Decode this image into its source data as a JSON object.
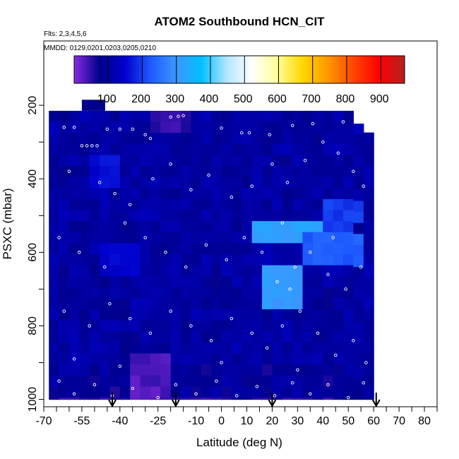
{
  "chart_data": {
    "type": "heatmap",
    "title": "ATOM2 Southbound HCN_CIT",
    "subtitle_flights": "Flts: 2,3,4,5,6",
    "subtitle_dates": "MMDD: 0129,0201,0203,0205,0210",
    "xlabel": "Latitude (deg N)",
    "ylabel": "PSXC (mbar)",
    "xlim": [
      -70,
      85
    ],
    "ylim": [
      1020,
      25
    ],
    "x_ticks": [
      -70,
      -55,
      -40,
      -25,
      -10,
      0,
      10,
      20,
      30,
      40,
      50,
      60,
      70,
      80
    ],
    "y_ticks": [
      200,
      400,
      600,
      800,
      1000
    ],
    "y_reversed": true,
    "grid": false,
    "colorbar": {
      "min": 0,
      "max": 970,
      "ticks": [
        100,
        200,
        300,
        400,
        500,
        600,
        700,
        800,
        900
      ],
      "colors": [
        "#8a2be2",
        "#00008b",
        "#0000cd",
        "#1e5aff",
        "#3c96ff",
        "#00bfff",
        "#b4e6ff",
        "#ffffff",
        "#ffff96",
        "#ffd700",
        "#ff9600",
        "#ff4500",
        "#ff0000",
        "#b22222"
      ],
      "placement": "top inside plot"
    },
    "arrows_latitude": [
      -43,
      -18,
      20,
      61
    ],
    "region": {
      "x_range": [
        -68,
        60
      ],
      "p_range": [
        215,
        1000
      ]
    },
    "anomalies": [
      {
        "x": [
          15,
          45
        ],
        "p": [
          520,
          570
        ],
        "value": 330
      },
      {
        "x": [
          18,
          32
        ],
        "p": [
          650,
          740
        ],
        "value": 320
      },
      {
        "x": [
          35,
          55
        ],
        "p": [
          565,
          620
        ],
        "value": 240
      },
      {
        "x": [
          40,
          55
        ],
        "p": [
          460,
          520
        ],
        "value": 210
      },
      {
        "x": [
          -35,
          -20
        ],
        "p": [
          880,
          1000
        ],
        "value": 45
      },
      {
        "x": [
          -25,
          -15
        ],
        "p": [
          220,
          250
        ],
        "value": 60
      },
      {
        "x": [
          -50,
          -40
        ],
        "p": [
          340,
          420
        ],
        "value": 170
      },
      {
        "x": [
          -45,
          -35
        ],
        "p": [
          580,
          640
        ],
        "value": 160
      }
    ],
    "sample_points": [
      {
        "x": -55,
        "p": 310
      },
      {
        "x": -53,
        "p": 310
      },
      {
        "x": -51,
        "p": 310
      },
      {
        "x": -49,
        "p": 310
      },
      {
        "x": -62,
        "p": 260
      },
      {
        "x": -58,
        "p": 260
      },
      {
        "x": -45,
        "p": 265
      },
      {
        "x": -40,
        "p": 265
      },
      {
        "x": -35,
        "p": 265
      },
      {
        "x": -30,
        "p": 280
      },
      {
        "x": -28,
        "p": 290
      },
      {
        "x": -20,
        "p": 232
      },
      {
        "x": -17,
        "p": 230
      },
      {
        "x": -15,
        "p": 228
      },
      {
        "x": 0,
        "p": 262
      },
      {
        "x": 8,
        "p": 275
      },
      {
        "x": 11,
        "p": 275
      },
      {
        "x": 19,
        "p": 280
      },
      {
        "x": 28,
        "p": 255
      },
      {
        "x": 36,
        "p": 250
      },
      {
        "x": 48,
        "p": 245
      },
      {
        "x": -60,
        "p": 380
      },
      {
        "x": -48,
        "p": 410
      },
      {
        "x": -42,
        "p": 440
      },
      {
        "x": -36,
        "p": 470
      },
      {
        "x": -27,
        "p": 400
      },
      {
        "x": -20,
        "p": 360
      },
      {
        "x": -12,
        "p": 430
      },
      {
        "x": -5,
        "p": 390
      },
      {
        "x": 4,
        "p": 450
      },
      {
        "x": 12,
        "p": 420
      },
      {
        "x": 20,
        "p": 360
      },
      {
        "x": 26,
        "p": 410
      },
      {
        "x": 33,
        "p": 350
      },
      {
        "x": 40,
        "p": 300
      },
      {
        "x": 46,
        "p": 330
      },
      {
        "x": 52,
        "p": 380
      },
      {
        "x": 56,
        "p": 420
      },
      {
        "x": -64,
        "p": 560
      },
      {
        "x": -56,
        "p": 600
      },
      {
        "x": -46,
        "p": 640
      },
      {
        "x": -38,
        "p": 520
      },
      {
        "x": -30,
        "p": 560
      },
      {
        "x": -22,
        "p": 600
      },
      {
        "x": -14,
        "p": 640
      },
      {
        "x": -6,
        "p": 580
      },
      {
        "x": 2,
        "p": 620
      },
      {
        "x": 9,
        "p": 560
      },
      {
        "x": 16,
        "p": 600
      },
      {
        "x": 22,
        "p": 680
      },
      {
        "x": 29,
        "p": 640
      },
      {
        "x": 35,
        "p": 600
      },
      {
        "x": 42,
        "p": 660
      },
      {
        "x": 49,
        "p": 700
      },
      {
        "x": 55,
        "p": 640
      },
      {
        "x": -62,
        "p": 760
      },
      {
        "x": -52,
        "p": 800
      },
      {
        "x": -44,
        "p": 740
      },
      {
        "x": -36,
        "p": 780
      },
      {
        "x": -28,
        "p": 820
      },
      {
        "x": -20,
        "p": 760
      },
      {
        "x": -12,
        "p": 800
      },
      {
        "x": -4,
        "p": 840
      },
      {
        "x": 4,
        "p": 780
      },
      {
        "x": 12,
        "p": 820
      },
      {
        "x": 18,
        "p": 860
      },
      {
        "x": 24,
        "p": 800
      },
      {
        "x": 31,
        "p": 760
      },
      {
        "x": 38,
        "p": 820
      },
      {
        "x": 45,
        "p": 880
      },
      {
        "x": 52,
        "p": 840
      },
      {
        "x": 57,
        "p": 900
      },
      {
        "x": -64,
        "p": 950
      },
      {
        "x": -58,
        "p": 985
      },
      {
        "x": -50,
        "p": 960
      },
      {
        "x": -43,
        "p": 990
      },
      {
        "x": -35,
        "p": 970
      },
      {
        "x": -25,
        "p": 995
      },
      {
        "x": -18,
        "p": 960
      },
      {
        "x": -10,
        "p": 985
      },
      {
        "x": -2,
        "p": 950
      },
      {
        "x": 6,
        "p": 990
      },
      {
        "x": 14,
        "p": 965
      },
      {
        "x": 21,
        "p": 990
      },
      {
        "x": 28,
        "p": 955
      },
      {
        "x": 35,
        "p": 985
      },
      {
        "x": 42,
        "p": 960
      },
      {
        "x": 50,
        "p": 995
      },
      {
        "x": 56,
        "p": 955
      },
      {
        "x": -58,
        "p": 890
      },
      {
        "x": -40,
        "p": 910
      },
      {
        "x": 0,
        "p": 900
      },
      {
        "x": 30,
        "p": 920
      },
      {
        "x": 44,
        "p": 560
      },
      {
        "x": 24,
        "p": 520
      },
      {
        "x": 27,
        "p": 700
      }
    ]
  }
}
